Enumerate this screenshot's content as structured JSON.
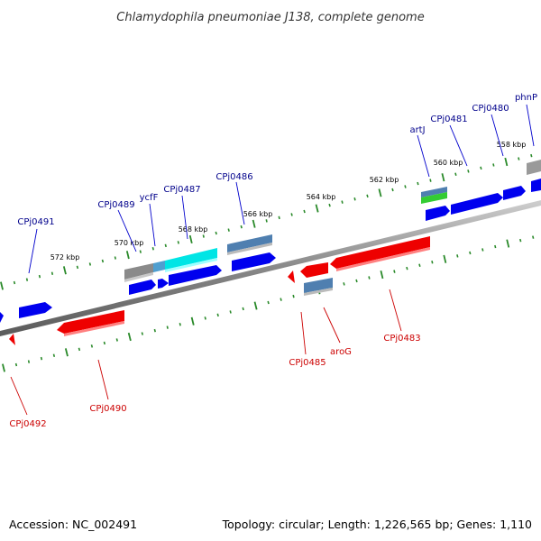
{
  "title": "Chlamydophila pneumoniae J138, complete genome",
  "footer": {
    "accession": "Accession: NC_002491",
    "summary": "Topology: circular; Length: 1,226,565 bp; Genes: 1,110"
  },
  "colors": {
    "forward_strand": "#0000ee",
    "reverse_strand": "#ee0000",
    "backbone": "#888888",
    "ticks": "#2a8a2a",
    "gene_label_forward": "#00008b",
    "gene_label_reverse": "#cc0000",
    "feature_cyan": "#00e5e5",
    "feature_steel": "#4f7fb0",
    "feature_green": "#33cc33",
    "feature_gray": "#8a8a8a"
  },
  "axis": {
    "tick_labels": [
      "572 kbp",
      "570 kbp",
      "568 kbp",
      "566 kbp",
      "564 kbp",
      "562 kbp",
      "560 kbp",
      "558 kbp"
    ]
  },
  "genes": {
    "forward": [
      "CPj0491",
      "CPj0489",
      "ycfF",
      "CPj0487",
      "CPj0486",
      "artJ",
      "CPj0481",
      "CPj0480",
      "phnP"
    ],
    "reverse": [
      "CPj0492",
      "CPj0490",
      "CPj0485",
      "aroG",
      "CPj0483"
    ]
  }
}
